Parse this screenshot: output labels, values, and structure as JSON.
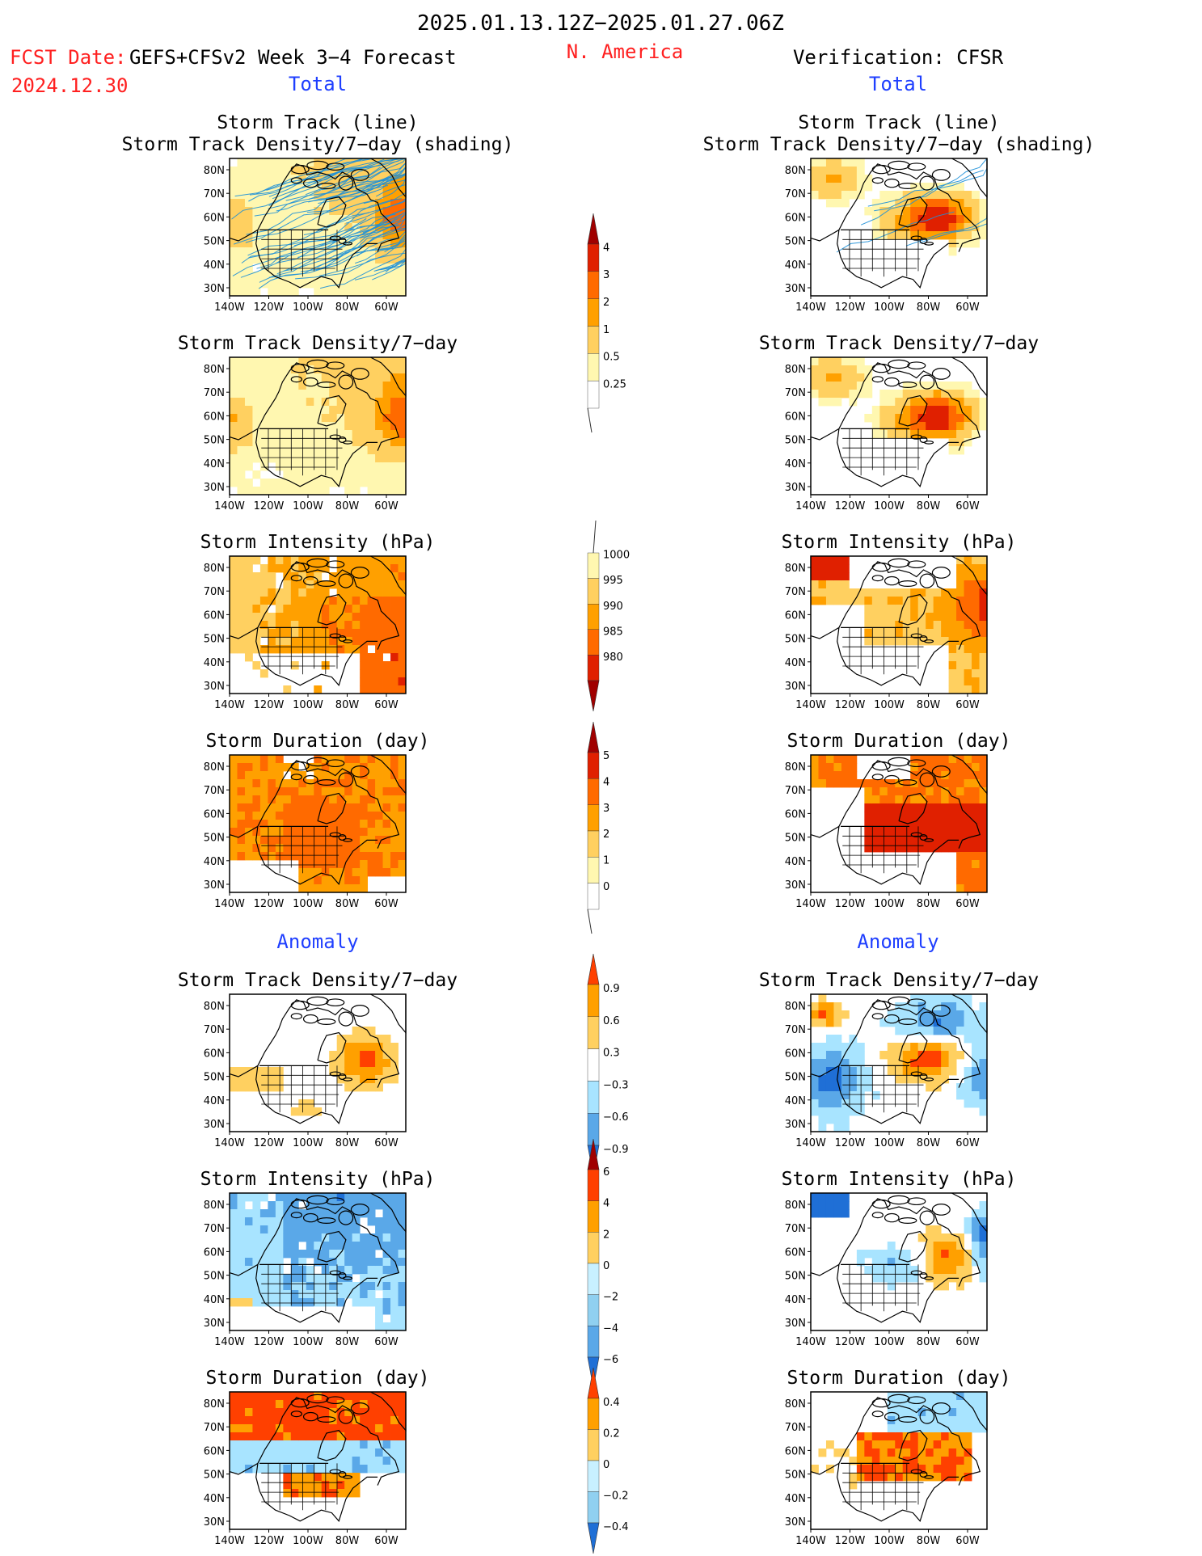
{
  "header": {
    "date_range": "2025.01.13.12Z−2025.01.27.06Z",
    "fcst_label": "FCST Date:",
    "fcst_model": "GEFS+CFSv2 Week 3−4 Forecast",
    "fcst_date": "2024.12.30",
    "region": "N. America",
    "verification": "Verification: CFSR"
  },
  "sections": {
    "total_left": "Total",
    "total_right": "Total",
    "anomaly_left": "Anomaly",
    "anomaly_right": "Anomaly"
  },
  "panel_titles": {
    "track_line": "Storm Track (line)",
    "track_density_shading": "Storm Track Density/7−day (shading)",
    "track_density": "Storm Track Density/7−day",
    "intensity": "Storm Intensity (hPa)",
    "duration": "Storm Duration (day)"
  },
  "axes": {
    "lat_labels": [
      "80N",
      "70N",
      "60N",
      "50N",
      "40N",
      "30N"
    ],
    "lon_labels": [
      "140W",
      "120W",
      "100W",
      "80W",
      "60W"
    ]
  },
  "colorbars": {
    "density_total": [
      "4",
      "3",
      "2",
      "1",
      "0.5",
      "0.25"
    ],
    "intensity_total": [
      "1000",
      "995",
      "990",
      "985",
      "980"
    ],
    "duration_total": [
      "5",
      "4",
      "3",
      "2",
      "1",
      "0"
    ],
    "density_anom": [
      "0.9",
      "0.6",
      "0.3",
      "−0.3",
      "−0.6",
      "−0.9"
    ],
    "intensity_anom": [
      "6",
      "4",
      "2",
      "0",
      "−2",
      "−4",
      "−6"
    ],
    "duration_anom": [
      "0.4",
      "0.2",
      "0",
      "−0.2",
      "−0.4"
    ]
  },
  "colors": {
    "title": "#000000",
    "fcst": "#ff2020",
    "section": "#1f3fff",
    "track_line": "#1e90d8",
    "warm": [
      "#fff7b0",
      "#ffd060",
      "#ffa000",
      "#ff6a00",
      "#e02000",
      "#a00000"
    ],
    "cool": [
      "#c8f0ff",
      "#90d0f0",
      "#5aa8e8",
      "#2a78d8",
      "#1a5ac8"
    ]
  },
  "chart_data": [
    {
      "type": "heatmap",
      "panel": "forecast-track-density-with-tracks",
      "title": "Storm Track (line) / Storm Track Density/7−day (shading)",
      "ylabel": "",
      "xlabel": ""
    },
    {
      "type": "heatmap",
      "panel": "verification-track-density-with-tracks",
      "title": "Storm Track (line) / Storm Track Density/7−day (shading)"
    },
    {
      "type": "heatmap",
      "panel": "forecast-track-density",
      "title": "Storm Track Density/7−day"
    },
    {
      "type": "heatmap",
      "panel": "verification-track-density",
      "title": "Storm Track Density/7−day"
    },
    {
      "type": "heatmap",
      "panel": "forecast-intensity",
      "title": "Storm Intensity (hPa)"
    },
    {
      "type": "heatmap",
      "panel": "verification-intensity",
      "title": "Storm Intensity (hPa)"
    },
    {
      "type": "heatmap",
      "panel": "forecast-duration",
      "title": "Storm Duration (day)"
    },
    {
      "type": "heatmap",
      "panel": "verification-duration",
      "title": "Storm Duration (day)"
    },
    {
      "type": "heatmap",
      "panel": "forecast-density-anomaly",
      "title": "Storm Track Density/7−day"
    },
    {
      "type": "heatmap",
      "panel": "verification-density-anomaly",
      "title": "Storm Track Density/7−day"
    },
    {
      "type": "heatmap",
      "panel": "forecast-intensity-anomaly",
      "title": "Storm Intensity (hPa)"
    },
    {
      "type": "heatmap",
      "panel": "verification-intensity-anomaly",
      "title": "Storm Intensity (hPa)"
    },
    {
      "type": "heatmap",
      "panel": "forecast-duration-anomaly",
      "title": "Storm Duration (day)"
    },
    {
      "type": "heatmap",
      "panel": "verification-duration-anomaly",
      "title": "Storm Duration (day)"
    }
  ]
}
